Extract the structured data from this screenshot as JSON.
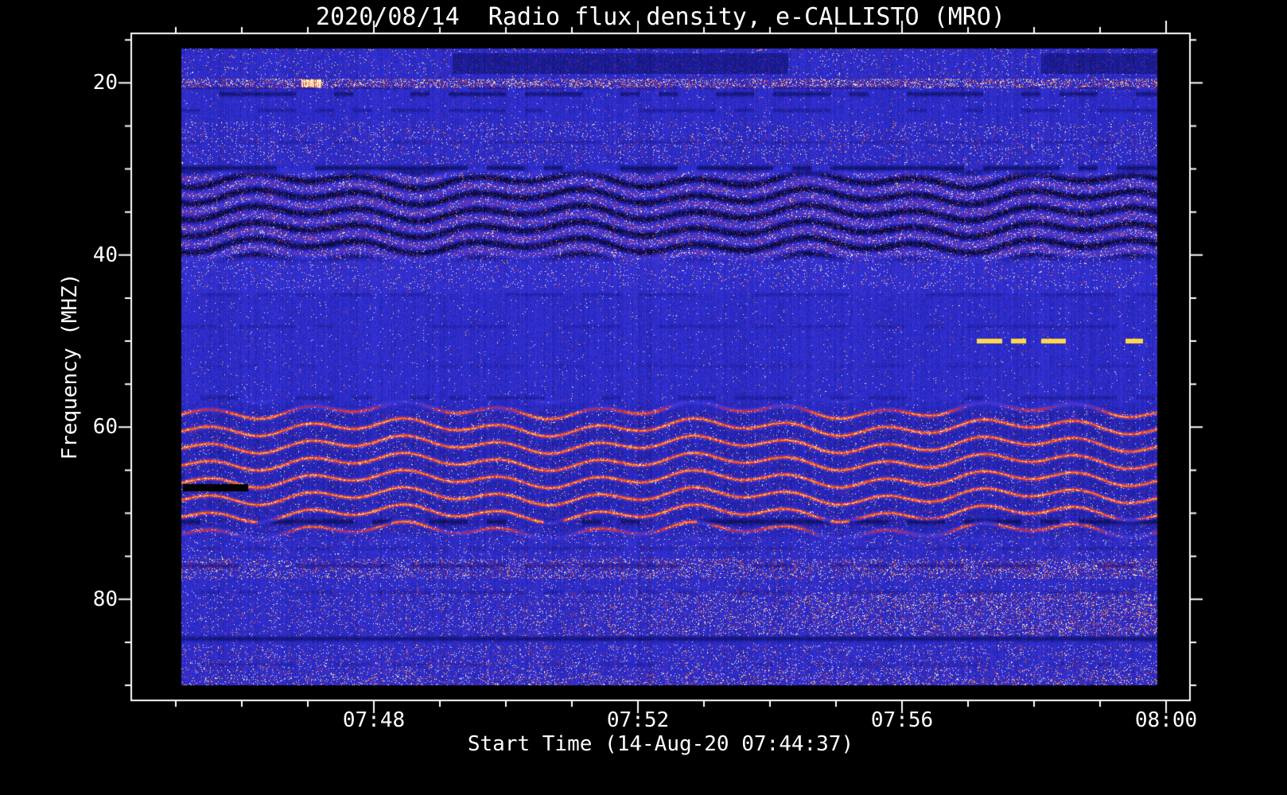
{
  "title": "2020/08/14  Radio flux density, e-CALLISTO (MRO)",
  "axes": {
    "x_label": "Start Time (14-Aug-20 07:44:37)",
    "y_label": "Frequency (MHZ)",
    "x_tick_labels": [
      "07:48",
      "07:52",
      "07:56",
      "08:00"
    ],
    "y_tick_labels": [
      "20",
      "40",
      "60",
      "80"
    ]
  },
  "chart_data": {
    "type": "heatmap",
    "subtype": "radio-spectrogram",
    "title": "2020/08/14  Radio flux density, e-CALLISTO (MRO)",
    "instrument": "e-CALLISTO (MRO)",
    "date": "2020/08/14",
    "xlabel": "Start Time (14-Aug-20 07:44:37)",
    "ylabel": "Frequency (MHZ)",
    "x_ticks": [
      "07:48",
      "07:52",
      "07:56",
      "08:00"
    ],
    "y_ticks": [
      20,
      40,
      60,
      80
    ],
    "x_minor_tick_interval_min": 1,
    "y_minor_tick_interval_mhz": 5,
    "x_range": [
      "07:44:37",
      "08:00:00"
    ],
    "y_range_mhz": [
      15,
      92
    ],
    "y_axis_inverted": true,
    "grid": false,
    "legend": "none",
    "colormap": {
      "background_blue": "#3434d8",
      "active_red": "#d02c38",
      "hot_orange": "#eb6424",
      "saturated_yellow": "#ffd84a",
      "dropout_black": "#000000"
    },
    "features": [
      {
        "kind": "speckle_row",
        "freq_mhz": 20,
        "note": "bright red/orange interference row across full time span, brightest blob near 07:46"
      },
      {
        "kind": "dark_rows",
        "freq_mhz": [
          21,
          23,
          30
        ],
        "note": "dark dashed dropout rows below the 20 MHz interference line"
      },
      {
        "kind": "wavy_band",
        "freq_mhz": [
          31,
          40
        ],
        "note": "dense undulating red/dark fringe band, wave period roughly 20-40 s, present for the whole interval"
      },
      {
        "kind": "haze",
        "freq_mhz": [
          40,
          44
        ],
        "note": "diffuse red speckle haze below the wavy band"
      },
      {
        "kind": "quiet_band",
        "freq_mhz": [
          44,
          57
        ],
        "note": "mostly uniform blue background with faint dark rows near 44.5, 48 and 53 MHz"
      },
      {
        "kind": "hot_dashes",
        "freq_mhz": 50,
        "time": "07:57:30-08:00",
        "note": "four short saturated yellow dashes near the right edge"
      },
      {
        "kind": "wavy_lines",
        "freq_mhz": [
          58,
          72
        ],
        "note": "several thin undulating red emission/interference lines"
      },
      {
        "kind": "dropout_bar",
        "freq_mhz": 67,
        "time": "07:45:05-07:46:00",
        "note": "solid black data-gap bar at left edge of data"
      },
      {
        "kind": "dark_row_dashed",
        "freq_mhz": 71,
        "note": "strongly dashed black dropout row"
      },
      {
        "kind": "speckle_band",
        "freq_mhz": [
          75.5,
          77.5
        ],
        "note": "red speckle band with dark line at 76 MHz"
      },
      {
        "kind": "speckle_band",
        "freq_mhz": [
          79,
          84
        ],
        "note": "red speckle band intensifying toward 08:00"
      },
      {
        "kind": "dark_row",
        "freq_mhz": 84.5,
        "note": "nearly continuous dark dropout line"
      },
      {
        "kind": "speckle_band",
        "freq_mhz": [
          85.5,
          90
        ],
        "note": "moderate red speckle rows down to bottom edge"
      }
    ]
  },
  "colors": {
    "background": "#000000",
    "frame": "#ffffff",
    "text": "#ffffff"
  }
}
